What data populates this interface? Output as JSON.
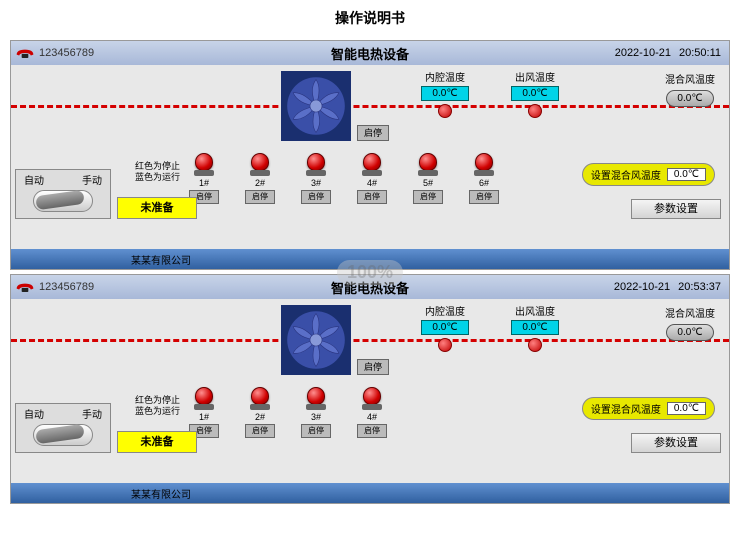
{
  "doc_title": "操作说明书",
  "watermark": "100%",
  "panels": [
    {
      "id": "123456789",
      "title": "智能电热设备",
      "date": "2022-10-21",
      "time": "20:50:11",
      "temp1_label": "内腔温度",
      "temp1_value": "0.0℃",
      "temp2_label": "出风温度",
      "temp2_value": "0.0℃",
      "mix_label": "混合风温度",
      "mix_value": "0.0℃",
      "fan_btn": "启停",
      "legend_line1": "红色为停止",
      "legend_line2": "蓝色为运行",
      "lamps": [
        {
          "num": "1#",
          "btn": "启停"
        },
        {
          "num": "2#",
          "btn": "启停"
        },
        {
          "num": "3#",
          "btn": "启停"
        },
        {
          "num": "4#",
          "btn": "启停"
        },
        {
          "num": "5#",
          "btn": "启停"
        },
        {
          "num": "6#",
          "btn": "启停"
        }
      ],
      "set_mix_label": "设置混合风温度",
      "set_mix_value": "0.0℃",
      "mode_auto": "自动",
      "mode_manual": "手动",
      "status": "未准备",
      "param_btn": "参数设置",
      "company": "某某有限公司"
    },
    {
      "id": "123456789",
      "title": "智能电热设备",
      "date": "2022-10-21",
      "time": "20:53:37",
      "temp1_label": "内腔温度",
      "temp1_value": "0.0℃",
      "temp2_label": "出风温度",
      "temp2_value": "0.0℃",
      "mix_label": "混合风温度",
      "mix_value": "0.0℃",
      "fan_btn": "启停",
      "legend_line1": "红色为停止",
      "legend_line2": "蓝色为运行",
      "lamps": [
        {
          "num": "1#",
          "btn": "启停"
        },
        {
          "num": "2#",
          "btn": "启停"
        },
        {
          "num": "3#",
          "btn": "启停"
        },
        {
          "num": "4#",
          "btn": "启停"
        }
      ],
      "set_mix_label": "设置混合风温度",
      "set_mix_value": "0.0℃",
      "mode_auto": "自动",
      "mode_manual": "手动",
      "status": "未准备",
      "param_btn": "参数设置",
      "company": "某某有限公司"
    }
  ],
  "colors": {
    "dash": "#d40000",
    "fan_bg": "#1a2f6f",
    "temp_bg": "#00d4e8",
    "lamp": "#d00000",
    "status_bg": "#ffff00",
    "setmix_bg": "#e8e800"
  }
}
